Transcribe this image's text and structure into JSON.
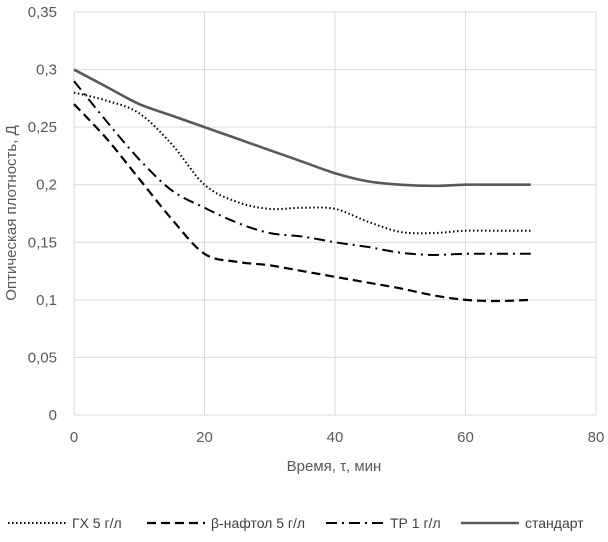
{
  "chart_data": {
    "type": "line",
    "title": "",
    "xlabel": "Время, τ, мин",
    "ylabel": "Оптическая плотность, Д",
    "xlim": [
      0,
      80
    ],
    "ylim": [
      0,
      0.35
    ],
    "x_ticks": [
      0,
      20,
      40,
      60,
      80
    ],
    "x_tick_labels": [
      "0",
      "20",
      "40",
      "60",
      "80"
    ],
    "y_ticks": [
      0,
      0.05,
      0.1,
      0.15,
      0.2,
      0.25,
      0.3,
      0.35
    ],
    "y_tick_labels": [
      "0",
      "0,05",
      "0,1",
      "0,15",
      "0,2",
      "0,25",
      "0,3",
      "0,35"
    ],
    "grid": true,
    "legend_position": "bottom",
    "series": [
      {
        "name": "ГХ 5 г/л",
        "style": "dotted",
        "color": "#000000",
        "points": [
          [
            0,
            0.28
          ],
          [
            5,
            0.273
          ],
          [
            10,
            0.262
          ],
          [
            15,
            0.235
          ],
          [
            20,
            0.2
          ],
          [
            25,
            0.185
          ],
          [
            30,
            0.179
          ],
          [
            35,
            0.18
          ],
          [
            40,
            0.179
          ],
          [
            45,
            0.168
          ],
          [
            50,
            0.159
          ],
          [
            55,
            0.158
          ],
          [
            60,
            0.16
          ],
          [
            65,
            0.16
          ],
          [
            70,
            0.16
          ]
        ]
      },
      {
        "name": "β-нафтол 5 г/л",
        "style": "dashed",
        "color": "#000000",
        "points": [
          [
            0,
            0.27
          ],
          [
            5,
            0.24
          ],
          [
            10,
            0.205
          ],
          [
            15,
            0.17
          ],
          [
            20,
            0.14
          ],
          [
            25,
            0.133
          ],
          [
            30,
            0.13
          ],
          [
            35,
            0.125
          ],
          [
            40,
            0.12
          ],
          [
            45,
            0.115
          ],
          [
            50,
            0.11
          ],
          [
            55,
            0.104
          ],
          [
            60,
            0.1
          ],
          [
            65,
            0.099
          ],
          [
            70,
            0.1
          ]
        ]
      },
      {
        "name": "ТР 1 г/л",
        "style": "dashdot",
        "color": "#000000",
        "points": [
          [
            0,
            0.29
          ],
          [
            5,
            0.255
          ],
          [
            10,
            0.222
          ],
          [
            15,
            0.195
          ],
          [
            20,
            0.18
          ],
          [
            25,
            0.167
          ],
          [
            30,
            0.158
          ],
          [
            35,
            0.155
          ],
          [
            40,
            0.15
          ],
          [
            45,
            0.146
          ],
          [
            50,
            0.141
          ],
          [
            55,
            0.139
          ],
          [
            60,
            0.14
          ],
          [
            65,
            0.14
          ],
          [
            70,
            0.14
          ]
        ]
      },
      {
        "name": "стандарт",
        "style": "solid",
        "color": "#595959",
        "points": [
          [
            0,
            0.3
          ],
          [
            5,
            0.285
          ],
          [
            10,
            0.27
          ],
          [
            15,
            0.26
          ],
          [
            20,
            0.25
          ],
          [
            25,
            0.24
          ],
          [
            30,
            0.23
          ],
          [
            35,
            0.22
          ],
          [
            40,
            0.21
          ],
          [
            45,
            0.203
          ],
          [
            50,
            0.2
          ],
          [
            55,
            0.199
          ],
          [
            60,
            0.2
          ],
          [
            65,
            0.2
          ],
          [
            70,
            0.2
          ]
        ]
      }
    ]
  }
}
